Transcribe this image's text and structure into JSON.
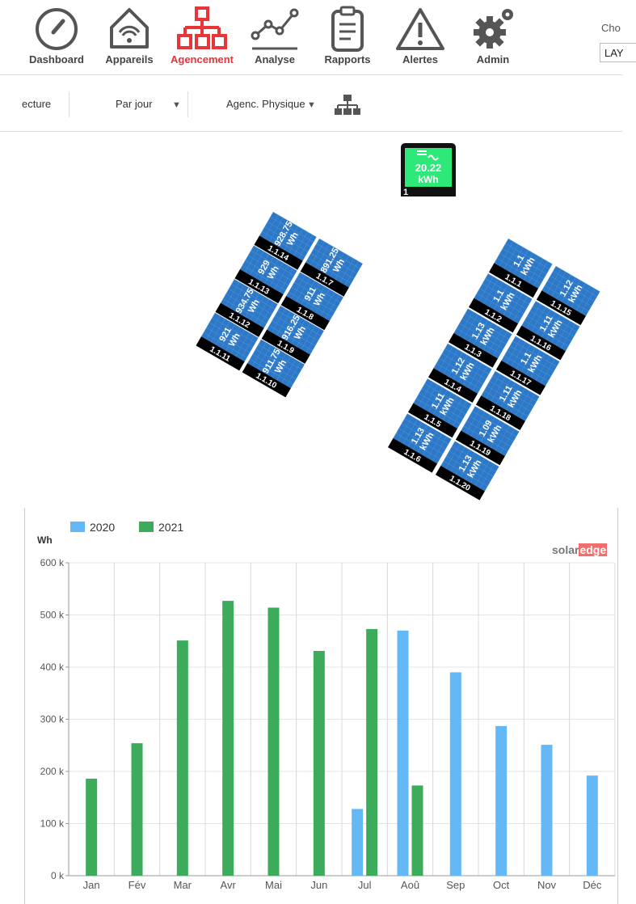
{
  "nav": {
    "items": [
      {
        "label": "Dashboard",
        "icon": "gauge-icon"
      },
      {
        "label": "Appareils",
        "icon": "house-wifi-icon"
      },
      {
        "label": "Agencement",
        "icon": "hierarchy-icon"
      },
      {
        "label": "Analyse",
        "icon": "line-graph-icon"
      },
      {
        "label": "Rapports",
        "icon": "clipboard-icon"
      },
      {
        "label": "Alertes",
        "icon": "warning-triangle-icon"
      },
      {
        "label": "Admin",
        "icon": "gears-icon"
      }
    ],
    "active_index": 2,
    "right_label": "Cho",
    "right_select": "LAY"
  },
  "toolbar": {
    "view_partial": "ecture",
    "period": "Par jour",
    "layout_mode": "Agenc. Physique",
    "tree_icon": "org-chart-icon"
  },
  "colors": {
    "accent": "#e8353a",
    "panel": "#2d78c7",
    "inverter": "#2ee87a",
    "s2020": "#64b8f6",
    "s2021": "#3dab5c"
  },
  "inverter": {
    "value": "20.22",
    "unit": "kWh",
    "index": "1",
    "icon": "inverter-icon"
  },
  "panel_groups": [
    {
      "rows": [
        [
          {
            "id": "1.1.14",
            "value": "928.75",
            "unit": "Wh"
          },
          {
            "id": "1.1.7",
            "value": "891.25",
            "unit": "Wh"
          }
        ],
        [
          {
            "id": "1.1.13",
            "value": "929",
            "unit": "Wh"
          },
          {
            "id": "1.1.8",
            "value": "911",
            "unit": "Wh"
          }
        ],
        [
          {
            "id": "1.1.12",
            "value": "934.75",
            "unit": "Wh"
          },
          {
            "id": "1.1.9",
            "value": "916.25",
            "unit": "Wh"
          }
        ],
        [
          {
            "id": "1.1.11",
            "value": "921",
            "unit": "Wh"
          },
          {
            "id": "1.1.10",
            "value": "911.75",
            "unit": "Wh"
          }
        ]
      ]
    },
    {
      "rows": [
        [
          {
            "id": "1.1.1",
            "value": "1.1",
            "unit": "kWh"
          },
          {
            "id": "1.1.15",
            "value": "1.12",
            "unit": "kWh"
          }
        ],
        [
          {
            "id": "1.1.2",
            "value": "1.1",
            "unit": "kWh"
          },
          {
            "id": "1.1.16",
            "value": "1.11",
            "unit": "kWh"
          }
        ],
        [
          {
            "id": "1.1.3",
            "value": "1.13",
            "unit": "kWh"
          },
          {
            "id": "1.1.17",
            "value": "1.1",
            "unit": "kWh"
          }
        ],
        [
          {
            "id": "1.1.4",
            "value": "1.12",
            "unit": "kWh"
          },
          {
            "id": "1.1.18",
            "value": "1.11",
            "unit": "kWh"
          }
        ],
        [
          {
            "id": "1.1.5",
            "value": "1.11",
            "unit": "kWh"
          },
          {
            "id": "1.1.19",
            "value": "1.09",
            "unit": "kWh"
          }
        ],
        [
          {
            "id": "1.1.6",
            "value": "1.13",
            "unit": "kWh"
          },
          {
            "id": "1.1.20",
            "value": "1.13",
            "unit": "kWh"
          }
        ]
      ]
    }
  ],
  "chart_logo": {
    "text1": "solar",
    "text2": "edge"
  },
  "chart_data": {
    "type": "bar",
    "ylabel": "Wh",
    "categories": [
      "Jan",
      "Fév",
      "Mar",
      "Avr",
      "Mai",
      "Jun",
      "Jul",
      "Aoû",
      "Sep",
      "Oct",
      "Nov",
      "Déc"
    ],
    "series": [
      {
        "name": "2020",
        "color": "#64b8f6",
        "values": [
          null,
          null,
          null,
          null,
          null,
          null,
          128000,
          470000,
          390000,
          287000,
          251000,
          192000
        ]
      },
      {
        "name": "2021",
        "color": "#3dab5c",
        "values": [
          186000,
          254000,
          451000,
          527000,
          514000,
          431000,
          473000,
          173000,
          null,
          null,
          null,
          null
        ]
      }
    ],
    "ylim": [
      0,
      600000
    ],
    "yticks": [
      0,
      100000,
      200000,
      300000,
      400000,
      500000,
      600000
    ],
    "ytick_labels": [
      "0 k",
      "100 k",
      "200 k",
      "300 k",
      "400 k",
      "500 k",
      "600 k"
    ],
    "grid": true,
    "legend": "top-left"
  }
}
